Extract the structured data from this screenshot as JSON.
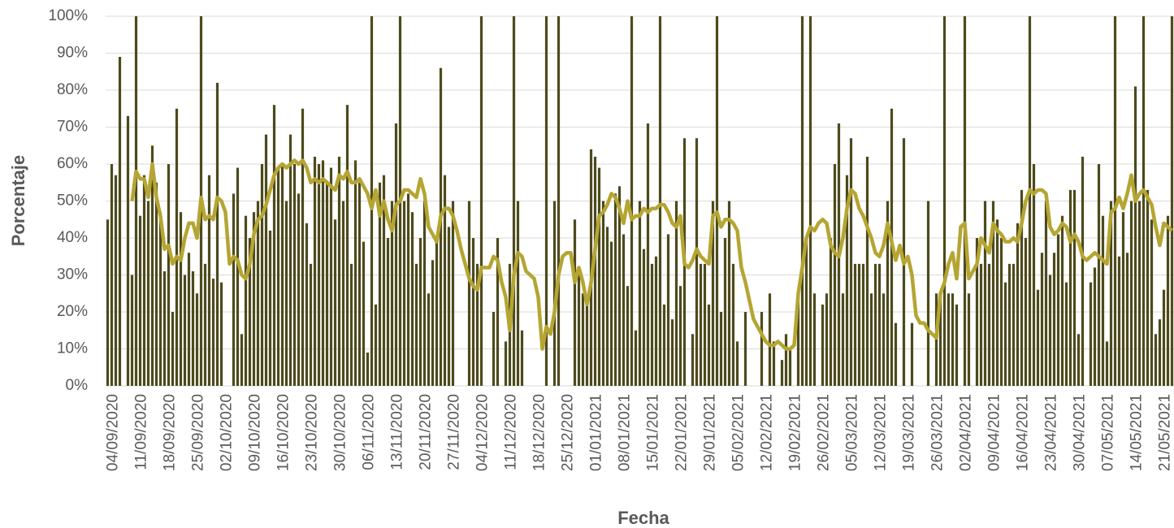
{
  "chart_data": {
    "type": "bar",
    "x_label": "Fecha",
    "y_label": "Porcentaje",
    "categories": [
      null,
      "04/09/2020",
      null,
      null,
      null,
      null,
      null,
      null,
      "11/09/2020",
      null,
      null,
      null,
      null,
      null,
      null,
      "18/09/2020",
      null,
      null,
      null,
      null,
      null,
      null,
      "25/09/2020",
      null,
      null,
      null,
      null,
      null,
      null,
      "02/10/2020",
      null,
      null,
      null,
      null,
      null,
      null,
      "09/10/2020",
      null,
      null,
      null,
      null,
      null,
      null,
      "16/10/2020",
      null,
      null,
      null,
      null,
      null,
      null,
      "23/10/2020",
      null,
      null,
      null,
      null,
      null,
      null,
      "30/10/2020",
      null,
      null,
      null,
      null,
      null,
      null,
      "06/11/2020",
      null,
      null,
      null,
      null,
      null,
      null,
      "13/11/2020",
      null,
      null,
      null,
      null,
      null,
      null,
      "20/11/2020",
      null,
      null,
      null,
      null,
      null,
      null,
      "27/11/2020",
      null,
      null,
      null,
      null,
      null,
      null,
      "04/12/2020",
      null,
      null,
      null,
      null,
      null,
      null,
      "11/12/2020",
      null,
      null,
      null,
      null,
      null,
      null,
      "18/12/2020",
      null,
      null,
      null,
      null,
      null,
      null,
      "25/12/2020",
      null,
      null,
      null,
      null,
      null,
      null,
      "01/01/2021",
      null,
      null,
      null,
      null,
      null,
      null,
      "08/01/2021",
      null,
      null,
      null,
      null,
      null,
      null,
      "15/01/2021",
      null,
      null,
      null,
      null,
      null,
      null,
      "22/01/2021",
      null,
      null,
      null,
      null,
      null,
      null,
      "29/01/2021",
      null,
      null,
      null,
      null,
      null,
      null,
      "05/02/2021",
      null,
      null,
      null,
      null,
      null,
      null,
      "12/02/2021",
      null,
      null,
      null,
      null,
      null,
      null,
      "19/02/2021",
      null,
      null,
      null,
      null,
      null,
      null,
      "26/02/2021",
      null,
      null,
      null,
      null,
      null,
      null,
      "05/03/2021",
      null,
      null,
      null,
      null,
      null,
      null,
      "12/03/2021",
      null,
      null,
      null,
      null,
      null,
      null,
      "19/03/2021",
      null,
      null,
      null,
      null,
      null,
      null,
      "26/03/2021",
      null,
      null,
      null,
      null,
      null,
      null,
      "02/04/2021",
      null,
      null,
      null,
      null,
      null,
      null,
      "09/04/2021",
      null,
      null,
      null,
      null,
      null,
      null,
      "16/04/2021",
      null,
      null,
      null,
      null,
      null,
      null,
      "23/04/2021",
      null,
      null,
      null,
      null,
      null,
      null,
      "30/04/2021",
      null,
      null,
      null,
      null,
      null,
      null,
      "07/05/2021",
      null,
      null,
      null,
      null,
      null,
      null,
      "14/05/2021",
      null,
      null,
      null,
      null,
      null,
      null,
      "21/05/2021",
      null,
      null
    ],
    "series": [
      {
        "type": "bar",
        "color": "#4d4a1c",
        "values": [
          45,
          60,
          57,
          89,
          0,
          73,
          30,
          100,
          46,
          57,
          50,
          65,
          55,
          47,
          31,
          60,
          20,
          75,
          47,
          30,
          36,
          31,
          25,
          100,
          33,
          57,
          29,
          82,
          28,
          0,
          0,
          52,
          59,
          14,
          46,
          40,
          47,
          50,
          60,
          68,
          42,
          76,
          59,
          60,
          50,
          68,
          60,
          52,
          75,
          44,
          33,
          62,
          60,
          61,
          55,
          59,
          45,
          62,
          50,
          76,
          33,
          61,
          55,
          39,
          9,
          100,
          22,
          55,
          57,
          40,
          50,
          71,
          100,
          50,
          52,
          47,
          33,
          40,
          50,
          25,
          34,
          40,
          86,
          57,
          43,
          50,
          0,
          0,
          0,
          50,
          40,
          33,
          100,
          0,
          0,
          20,
          40,
          0,
          12,
          33,
          100,
          50,
          15,
          0,
          0,
          0,
          0,
          0,
          100,
          0,
          50,
          100,
          0,
          0,
          0,
          45,
          30,
          25,
          22,
          64,
          62,
          59,
          50,
          43,
          39,
          52,
          54,
          41,
          27,
          100,
          15,
          50,
          37,
          71,
          33,
          35,
          100,
          22,
          41,
          18,
          50,
          27,
          67,
          0,
          14,
          67,
          33,
          33,
          22,
          50,
          100,
          20,
          40,
          50,
          33,
          12,
          0,
          20,
          0,
          0,
          0,
          20,
          0,
          25,
          12,
          0,
          7,
          14,
          10,
          0,
          25,
          100,
          40,
          100,
          25,
          0,
          22,
          25,
          40,
          60,
          71,
          25,
          57,
          67,
          33,
          33,
          33,
          62,
          25,
          33,
          33,
          25,
          50,
          75,
          17,
          0,
          67,
          0,
          17,
          0,
          0,
          0,
          50,
          0,
          25,
          25,
          100,
          25,
          25,
          22,
          0,
          100,
          25,
          0,
          40,
          33,
          50,
          33,
          50,
          45,
          40,
          28,
          33,
          33,
          44,
          53,
          40,
          100,
          60,
          26,
          36,
          50,
          30,
          36,
          41,
          46,
          28,
          53,
          53,
          14,
          62,
          0,
          28,
          32,
          60,
          46,
          12,
          50,
          100,
          35,
          47,
          36,
          50,
          81,
          50,
          100,
          53,
          45,
          14,
          18,
          26,
          46,
          100
        ]
      },
      {
        "type": "line",
        "color": "#b5a532",
        "values": [
          null,
          null,
          null,
          null,
          null,
          null,
          50,
          58,
          56,
          56,
          51,
          60,
          51,
          46,
          37,
          38,
          33,
          35,
          34,
          40,
          44,
          44,
          40,
          51,
          45,
          46,
          45,
          51,
          50,
          47,
          33,
          35,
          34,
          30,
          29,
          33,
          41,
          45,
          46,
          49,
          53,
          57,
          59,
          60,
          59,
          60,
          61,
          60,
          61,
          59,
          55,
          56,
          55,
          56,
          55,
          54,
          53,
          57,
          56,
          58,
          55,
          55,
          56,
          54,
          52,
          48,
          53,
          46,
          50,
          45,
          42,
          49,
          50,
          53,
          53,
          52,
          51,
          56,
          52,
          43,
          41,
          39,
          46,
          48,
          48,
          46,
          42,
          37,
          33,
          29,
          27,
          26,
          32,
          32,
          32,
          35,
          34,
          28,
          24,
          15,
          30,
          36,
          35,
          31,
          30,
          29,
          24,
          10,
          16,
          14,
          20,
          30,
          35,
          36,
          36,
          28,
          32,
          28,
          22,
          28,
          37,
          46,
          47,
          49,
          52,
          51,
          48,
          44,
          50,
          45,
          46,
          46,
          48,
          47,
          48,
          48,
          49,
          49,
          47,
          44,
          43,
          46,
          33,
          32,
          34,
          37,
          35,
          34,
          33,
          46,
          47,
          43,
          45,
          45,
          44,
          42,
          32,
          28,
          23,
          18,
          16,
          14,
          12,
          11,
          11,
          12,
          11,
          10,
          10,
          11,
          25,
          32,
          40,
          43,
          42,
          44,
          45,
          44,
          38,
          36,
          35,
          40,
          48,
          53,
          52,
          48,
          46,
          43,
          40,
          36,
          35,
          38,
          44,
          39,
          34,
          38,
          33,
          35,
          30,
          19,
          17,
          17,
          15,
          14,
          13,
          25,
          28,
          33,
          36,
          29,
          43,
          44,
          29,
          31,
          33,
          40,
          38,
          36,
          44,
          42,
          41,
          39,
          39,
          40,
          39,
          44,
          50,
          53,
          52,
          53,
          53,
          52,
          43,
          41,
          42,
          44,
          43,
          39,
          41,
          39,
          35,
          34,
          35,
          36,
          35,
          34,
          33,
          47,
          48,
          51,
          48,
          52,
          57,
          50,
          52,
          53,
          51,
          49,
          43,
          38,
          44,
          43,
          42
        ]
      }
    ],
    "ylim": [
      0,
      100
    ],
    "yticks": [
      {
        "value": 0,
        "label": "0%"
      },
      {
        "value": 10,
        "label": "10%"
      },
      {
        "value": 20,
        "label": "20%"
      },
      {
        "value": 30,
        "label": "30%"
      },
      {
        "value": 40,
        "label": "40%"
      },
      {
        "value": 50,
        "label": "50%"
      },
      {
        "value": 60,
        "label": "60%"
      },
      {
        "value": 70,
        "label": "70%"
      },
      {
        "value": 80,
        "label": "80%"
      },
      {
        "value": 90,
        "label": "90%"
      },
      {
        "value": 100,
        "label": "100%"
      }
    ],
    "grid": true
  }
}
